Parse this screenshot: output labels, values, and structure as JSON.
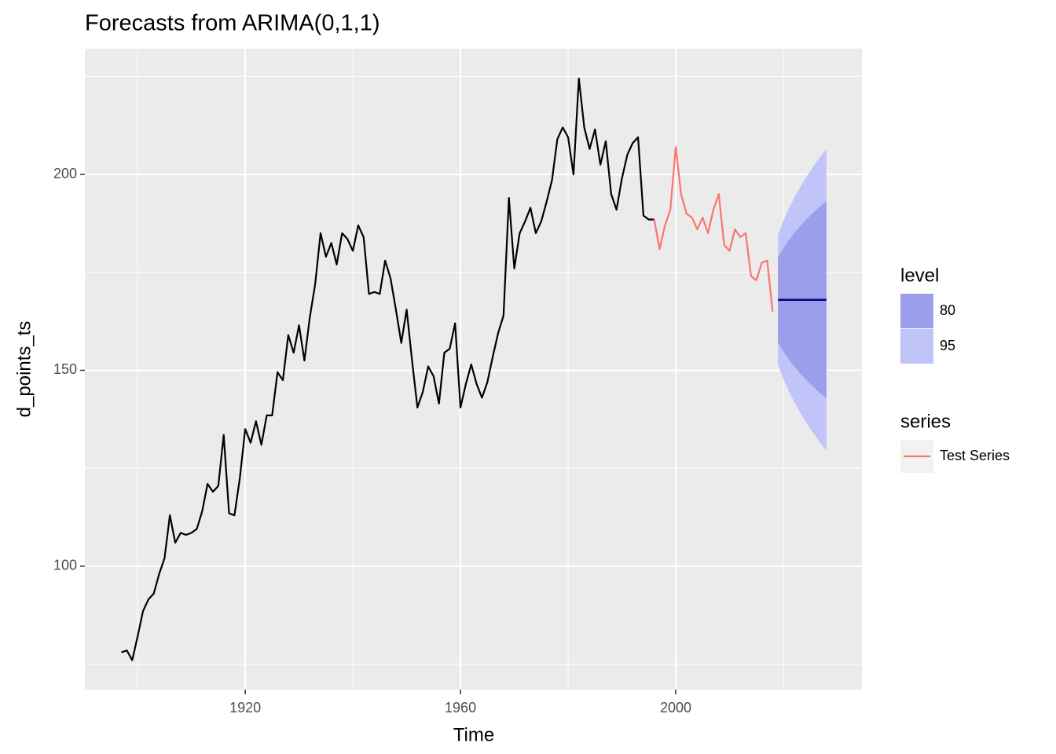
{
  "chart_data": {
    "type": "line",
    "title": "Forecasts from ARIMA(0,1,1)",
    "x_label": "Time",
    "y_label": "d_points_ts",
    "xlim": [
      1890.2,
      2034.6
    ],
    "ylim": [
      68.5,
      232.1
    ],
    "xticks": [
      1920,
      1960,
      2000
    ],
    "yticks": [
      100,
      150,
      200
    ],
    "grid": true,
    "panel_color": "#ebebeb",
    "series": [
      {
        "color": "#000000",
        "x": [
          1897,
          1898,
          1899,
          1900,
          1901,
          1902,
          1903,
          1904,
          1905,
          1906,
          1907,
          1908,
          1909,
          1910,
          1911,
          1912,
          1913,
          1914,
          1915,
          1916,
          1917,
          1918,
          1919,
          1920,
          1921,
          1922,
          1923,
          1924,
          1925,
          1926,
          1927,
          1928,
          1929,
          1930,
          1931,
          1932,
          1933,
          1934,
          1935,
          1936,
          1937,
          1938,
          1939,
          1940,
          1941,
          1942,
          1943,
          1944,
          1945,
          1946,
          1947,
          1948,
          1949,
          1950,
          1951,
          1952,
          1953,
          1954,
          1955,
          1956,
          1957,
          1958,
          1959,
          1960,
          1961,
          1962,
          1963,
          1964,
          1965,
          1966,
          1967,
          1968,
          1969,
          1970,
          1971,
          1972,
          1973,
          1974,
          1975,
          1976,
          1977,
          1978,
          1979,
          1980,
          1981,
          1982,
          1983,
          1984,
          1985,
          1986,
          1987,
          1988,
          1989,
          1990,
          1991,
          1992,
          1993,
          1994,
          1995,
          1996
        ],
        "values": [
          78,
          78.5,
          76,
          82,
          88.5,
          91.5,
          93,
          98,
          102,
          113,
          106,
          108.5,
          108,
          108.5,
          109.5,
          114,
          121,
          119,
          120.5,
          133.5,
          113.5,
          113,
          122.5,
          135,
          131.5,
          137,
          131,
          138.5,
          138.5,
          149.5,
          147.5,
          159,
          154.5,
          161.5,
          152.5,
          163.5,
          172,
          185,
          179,
          182.5,
          177,
          185,
          183.5,
          180.5,
          187,
          184,
          169.5,
          170,
          169.5,
          178,
          173.5,
          165.5,
          157,
          165.5,
          152.5,
          140.5,
          144.5,
          151,
          148.5,
          141.5,
          154.5,
          155.5,
          162,
          140.5,
          146.5,
          151.5,
          146.5,
          143,
          147,
          153.5,
          159.5,
          164,
          194,
          176,
          185,
          188,
          191.5,
          185,
          188,
          193,
          198.5,
          209,
          212,
          209.5,
          200,
          224.5,
          212,
          206.5,
          211.5,
          202.5,
          208.5,
          195,
          191,
          199,
          205,
          208,
          209.5,
          189.5,
          188.5,
          188.5
        ]
      },
      {
        "name": "Test Series",
        "color": "#f8766d",
        "x": [
          1996,
          1997,
          1998,
          1999,
          2000,
          2001,
          2002,
          2003,
          2004,
          2005,
          2006,
          2007,
          2008,
          2009,
          2010,
          2011,
          2012,
          2013,
          2014,
          2015,
          2016,
          2017,
          2018
        ],
        "values": [
          188.5,
          181,
          187,
          191,
          207,
          195,
          190,
          189,
          186,
          189,
          185,
          191,
          195,
          182,
          180.5,
          186,
          184,
          185,
          174,
          173,
          177.5,
          178,
          165
        ]
      }
    ],
    "forecast": {
      "x": [
        2019,
        2020,
        2021,
        2022,
        2023,
        2024,
        2025,
        2026,
        2027,
        2028
      ],
      "mean": [
        168,
        168,
        168,
        168,
        168,
        168,
        168,
        168,
        168,
        168
      ],
      "color": "#00008b",
      "legend_title": "level",
      "bands": [
        {
          "name": "80",
          "color": "#9b9eea",
          "lower": [
            157.2,
            154.8,
            152.8,
            151.0,
            149.4,
            147.9,
            146.5,
            145.2,
            144.0,
            142.8
          ],
          "upper": [
            178.8,
            181.2,
            183.2,
            185.0,
            186.6,
            188.1,
            189.5,
            190.8,
            192.0,
            193.2
          ]
        },
        {
          "name": "95",
          "color": "#c1c4f9",
          "lower": [
            151.5,
            147.8,
            144.7,
            142.0,
            139.5,
            137.2,
            135.1,
            133.1,
            131.2,
            129.5
          ],
          "upper": [
            184.5,
            188.2,
            191.3,
            194.0,
            196.5,
            198.8,
            200.9,
            202.9,
            204.8,
            206.5
          ]
        }
      ]
    },
    "series_legend_title": "series"
  }
}
